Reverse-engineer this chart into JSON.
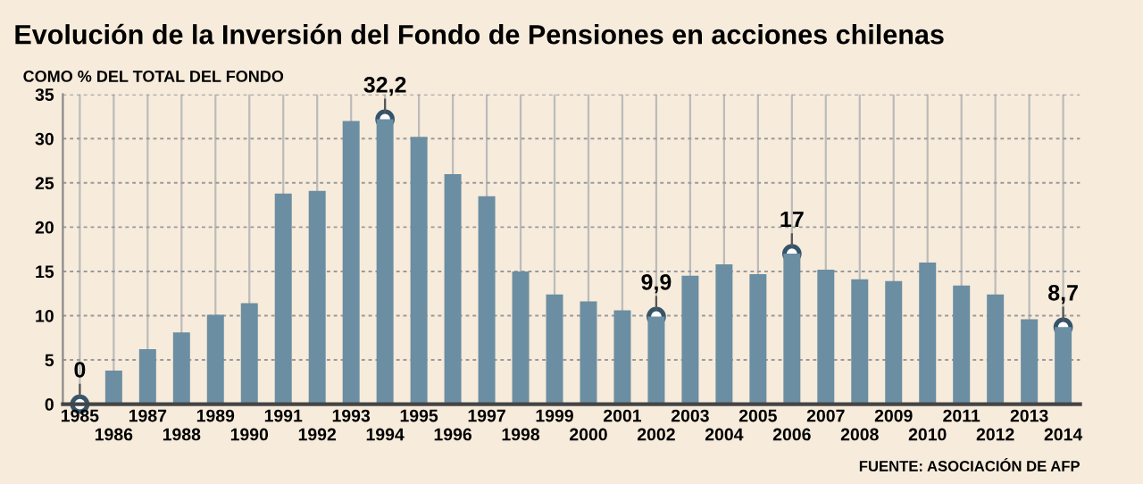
{
  "chart_data": {
    "type": "bar",
    "title": "Evolución de la Inversión del Fondo de Pensiones en acciones chilenas",
    "subtitle": "COMO % DEL TOTAL DEL FONDO",
    "categories": [
      "1985",
      "1986",
      "1987",
      "1988",
      "1989",
      "1990",
      "1991",
      "1992",
      "1993",
      "1994",
      "1995",
      "1996",
      "1997",
      "1998",
      "1999",
      "2000",
      "2001",
      "2002",
      "2003",
      "2004",
      "2005",
      "2006",
      "2007",
      "2008",
      "2009",
      "2010",
      "2011",
      "2012",
      "2013",
      "2014"
    ],
    "values": [
      0,
      3.8,
      6.2,
      8.1,
      10.1,
      11.4,
      23.8,
      24.1,
      32.0,
      32.2,
      30.2,
      26.0,
      23.5,
      15.0,
      12.4,
      11.6,
      10.6,
      9.9,
      14.5,
      15.8,
      14.7,
      17,
      15.2,
      14.1,
      13.9,
      16.0,
      13.4,
      12.4,
      9.6,
      8.7
    ],
    "value_labels": [
      "0",
      null,
      null,
      null,
      null,
      null,
      null,
      null,
      null,
      "32,2",
      null,
      null,
      null,
      null,
      null,
      null,
      null,
      "9,9",
      null,
      null,
      null,
      "17",
      null,
      null,
      null,
      null,
      null,
      null,
      null,
      "8,7"
    ],
    "color": "#6b8ea2",
    "marker": "circle",
    "ylim": [
      0,
      35
    ],
    "yticks": [
      0,
      5,
      10,
      15,
      20,
      25,
      30,
      35
    ],
    "grid": true,
    "annotations": [
      "FUENTE: ASOCIACIÓN DE AFP"
    ]
  }
}
